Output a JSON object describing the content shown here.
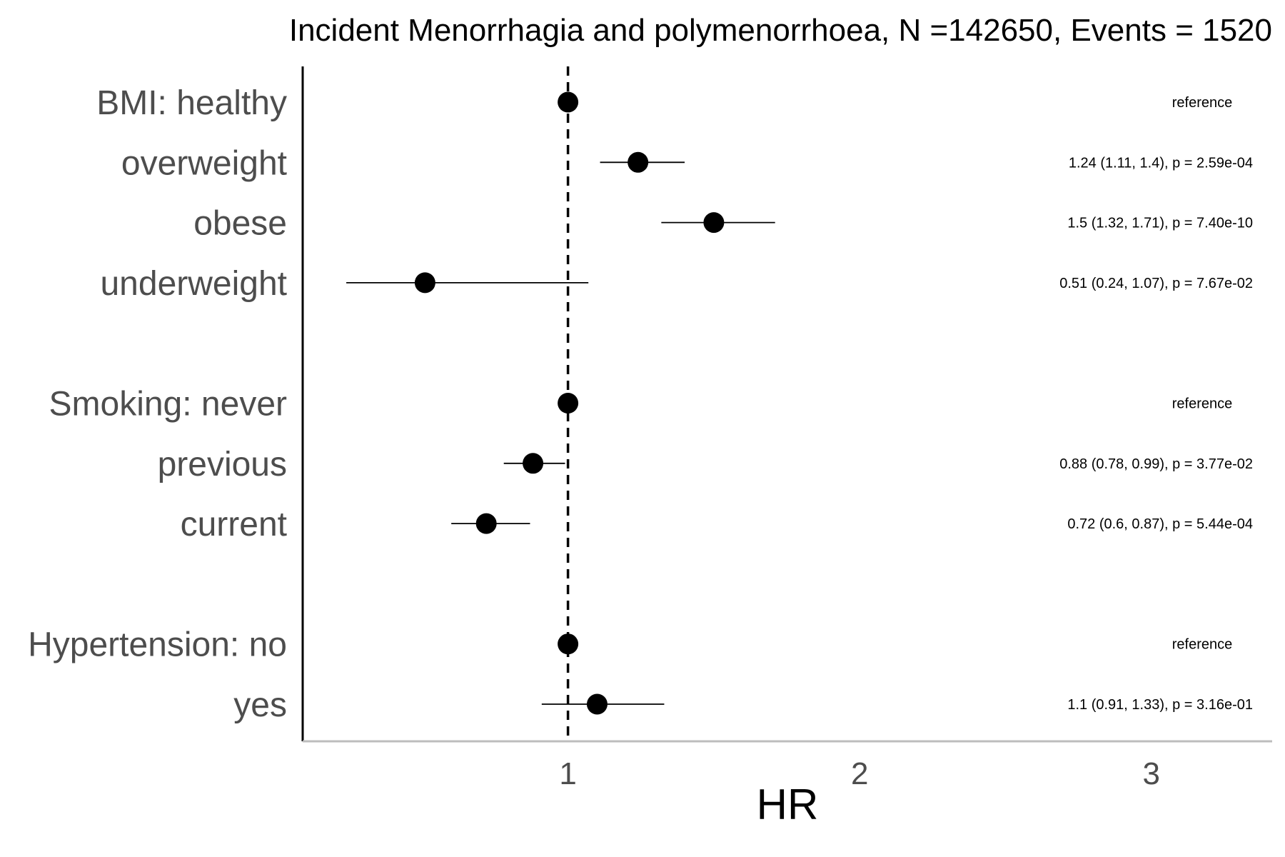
{
  "chart_data": {
    "type": "scatter",
    "subtype": "forest-plot",
    "title": "Incident Menorrhagia and polymenorrhoea, N =142650, Events = 1520",
    "xlabel": "HR",
    "ylabel": "",
    "xlim": [
      0.1,
      3.4
    ],
    "xticks": [
      1,
      2,
      3
    ],
    "xtick_labels": [
      "1",
      "2",
      "3"
    ],
    "reference_line": 1,
    "grid": false,
    "legend": "none",
    "rows": [
      {
        "label": "BMI: healthy",
        "hr": 1.0,
        "lower": null,
        "upper": null,
        "annotation": "reference"
      },
      {
        "label": "overweight",
        "hr": 1.24,
        "lower": 1.11,
        "upper": 1.4,
        "annotation": "1.24 (1.11, 1.4), p = 2.59e-04"
      },
      {
        "label": "obese",
        "hr": 1.5,
        "lower": 1.32,
        "upper": 1.71,
        "annotation": "1.5 (1.32, 1.71), p = 7.40e-10"
      },
      {
        "label": "underweight",
        "hr": 0.51,
        "lower": 0.24,
        "upper": 1.07,
        "annotation": "0.51 (0.24, 1.07), p = 7.67e-02"
      },
      {
        "label": "",
        "hr": null,
        "lower": null,
        "upper": null,
        "annotation": ""
      },
      {
        "label": "Smoking: never",
        "hr": 1.0,
        "lower": null,
        "upper": null,
        "annotation": "reference"
      },
      {
        "label": "previous",
        "hr": 0.88,
        "lower": 0.78,
        "upper": 0.99,
        "annotation": "0.88 (0.78, 0.99), p = 3.77e-02"
      },
      {
        "label": "current",
        "hr": 0.72,
        "lower": 0.6,
        "upper": 0.87,
        "annotation": "0.72 (0.6, 0.87), p = 5.44e-04"
      },
      {
        "label": "",
        "hr": null,
        "lower": null,
        "upper": null,
        "annotation": ""
      },
      {
        "label": "Hypertension: no",
        "hr": 1.0,
        "lower": null,
        "upper": null,
        "annotation": "reference"
      },
      {
        "label": "yes",
        "hr": 1.1,
        "lower": 0.91,
        "upper": 1.33,
        "annotation": "1.1 (0.91, 1.33), p = 3.16e-01"
      }
    ]
  },
  "colors": {
    "point": "#000000",
    "ci_line": "#000000",
    "reference_line": "#000000",
    "y_axis_line": "#000000",
    "x_axis_line": "#bdbdbd",
    "row_label": "#4d4d4d",
    "tick_label": "#4d4d4d"
  }
}
